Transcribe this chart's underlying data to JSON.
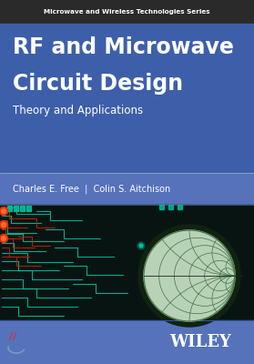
{
  "series_title": "Microwave and Wireless Technologies Series",
  "book_title_line1": "RF and Microwave",
  "book_title_line2": "Circuit Design",
  "subtitle": "Theory and Applications",
  "authors": "Charles E. Free  |  Colin S. Aitchison",
  "publisher": "WILEY",
  "bg_series": "#2a2a2a",
  "bg_blue_header": "#3d5faa",
  "bg_blue_authors": "#5572bb",
  "bg_dark_circuit": "#081412",
  "bg_bottom": "#5572bb",
  "title_color": "#ffffff",
  "subtitle_color": "#ffffff",
  "series_color": "#ffffff",
  "authors_color": "#ffffff",
  "publisher_color": "#ffffff",
  "smith_chart_fill": "#d0ecd0",
  "smith_line_color": "#4a7a4a",
  "circuit_teal": "#00bfa0",
  "circuit_red": "#cc2200",
  "circuit_dark_teal": "#006655",
  "wiley_logo_color": "#cc3333",
  "wiley_logo_arc": "#7799cc"
}
